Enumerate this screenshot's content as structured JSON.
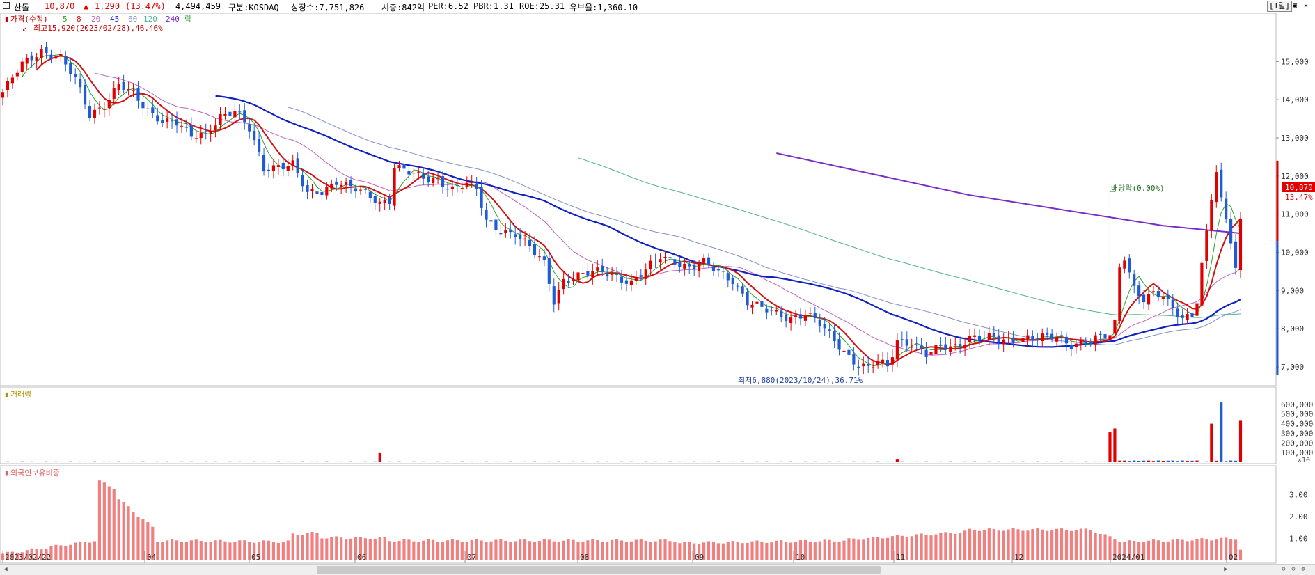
{
  "header": {
    "name": "산돌",
    "price": "10,870",
    "arrow": "▲",
    "change": "1,290",
    "change_pct": "(13.47%)",
    "volume": "4,494,459",
    "market": "구분:KOSDAQ",
    "shares": "상장수:7,751,826",
    "mktcap": "시총:842억",
    "per": "PER:6.52",
    "pbr": "PBR:1.31",
    "roe": "ROE:25.31",
    "float": "유보율:1,360.10",
    "period_btn": "[1일]"
  },
  "price_panel": {
    "legend_title": "가격(수정)",
    "ma_labels": [
      "5",
      "8",
      "20",
      "45",
      "60",
      "120",
      "240"
    ],
    "ex_label": "락",
    "high_note": "최고15,920(2023/02/28),46.46%",
    "low_note": "최저6,880(2023/10/24),36.71%",
    "dividend_note": "배당락(0.00%)",
    "last_price": "10,870",
    "last_pct": "13.47%"
  },
  "volume_panel": {
    "title": "거래량",
    "unit": "×10"
  },
  "foreign_panel": {
    "title": "외국인보유비중"
  },
  "colors": {
    "up": "#e00000",
    "down": "#1f5bd6",
    "ma5": "#2ca02c",
    "ma8": "#d01010",
    "ma20": "#c060c0",
    "ma45": "#1020c0",
    "ma60": "#8090c8",
    "ma120": "#50b090",
    "ma240": "#7a2cc8",
    "foreign_bar": "#f08080"
  },
  "chart_data": [
    {
      "type": "candlestick",
      "x_ticks": [
        "2023/02/22",
        "04",
        "05",
        "06",
        "07",
        "08",
        "09",
        "10",
        "11",
        "12",
        "2024/01",
        "02"
      ],
      "y_ticks": [
        "15,000",
        "14,000",
        "13,000",
        "12,000",
        "11,000",
        "10,000",
        "9,000",
        "8,000",
        "7,000"
      ],
      "ylim": [
        6600,
        15900
      ],
      "close_path": [
        [
          0,
          14200
        ],
        [
          4,
          14900
        ],
        [
          8,
          15300
        ],
        [
          12,
          15100
        ],
        [
          15,
          14500
        ],
        [
          18,
          13600
        ],
        [
          21,
          13900
        ],
        [
          24,
          14400
        ],
        [
          27,
          14100
        ],
        [
          30,
          13700
        ],
        [
          33,
          13500
        ],
        [
          36,
          13400
        ],
        [
          39,
          13000
        ],
        [
          42,
          13100
        ],
        [
          45,
          13600
        ],
        [
          48,
          13700
        ],
        [
          51,
          13200
        ],
        [
          54,
          12200
        ],
        [
          57,
          12300
        ],
        [
          60,
          12300
        ],
        [
          63,
          11500
        ],
        [
          66,
          11600
        ],
        [
          69,
          11900
        ],
        [
          72,
          11700
        ],
        [
          75,
          11500
        ],
        [
          78,
          11300
        ],
        [
          80,
          11400
        ],
        [
          81,
          12300
        ],
        [
          84,
          12100
        ],
        [
          87,
          11900
        ],
        [
          90,
          11900
        ],
        [
          93,
          11700
        ],
        [
          96,
          11800
        ],
        [
          98,
          11600
        ],
        [
          100,
          10800
        ],
        [
          103,
          10600
        ],
        [
          106,
          10500
        ],
        [
          109,
          10100
        ],
        [
          112,
          9700
        ],
        [
          114,
          8750
        ],
        [
          116,
          9300
        ],
        [
          120,
          9400
        ],
        [
          124,
          9500
        ],
        [
          127,
          9400
        ],
        [
          130,
          9200
        ],
        [
          133,
          9500
        ],
        [
          136,
          9900
        ],
        [
          139,
          9800
        ],
        [
          142,
          9600
        ],
        [
          145,
          9700
        ],
        [
          148,
          9500
        ],
        [
          151,
          9300
        ],
        [
          154,
          8700
        ],
        [
          157,
          8500
        ],
        [
          160,
          8400
        ],
        [
          163,
          8300
        ],
        [
          166,
          8400
        ],
        [
          169,
          8100
        ],
        [
          172,
          7700
        ],
        [
          175,
          7300
        ],
        [
          177,
          7050
        ],
        [
          179,
          6950
        ],
        [
          181,
          7100
        ],
        [
          183,
          7000
        ],
        [
          185,
          7700
        ],
        [
          188,
          7650
        ],
        [
          191,
          7300
        ],
        [
          194,
          7500
        ],
        [
          197,
          7550
        ],
        [
          200,
          7800
        ],
        [
          203,
          7750
        ],
        [
          206,
          7700
        ],
        [
          209,
          7700
        ],
        [
          212,
          7800
        ],
        [
          215,
          7750
        ],
        [
          218,
          7750
        ],
        [
          221,
          7600
        ],
        [
          224,
          7700
        ],
        [
          227,
          7750
        ],
        [
          229,
          7800
        ],
        [
          230,
          8100
        ],
        [
          231,
          9600
        ],
        [
          232,
          9900
        ],
        [
          234,
          9100
        ],
        [
          236,
          8800
        ],
        [
          238,
          8900
        ],
        [
          240,
          8800
        ],
        [
          242,
          8500
        ],
        [
          244,
          8300
        ],
        [
          246,
          8400
        ],
        [
          247,
          8800
        ],
        [
          248,
          9700
        ],
        [
          249,
          10500
        ],
        [
          250,
          11400
        ],
        [
          251,
          12100
        ],
        [
          252,
          11300
        ],
        [
          253,
          10800
        ],
        [
          254,
          10300
        ],
        [
          255,
          9600
        ],
        [
          256,
          10870
        ]
      ],
      "volume_spikes": [
        [
          78,
          95000
        ],
        [
          185,
          28000
        ],
        [
          229,
          310000
        ],
        [
          230,
          350000
        ],
        [
          250,
          400000
        ],
        [
          252,
          620000
        ],
        [
          256,
          430000
        ]
      ],
      "volume_ylim": [
        0,
        700000
      ],
      "volume_ticks": [
        "600,000",
        "500,000",
        "400,000",
        "300,000",
        "200,000",
        "100,000"
      ]
    },
    {
      "type": "bar",
      "name": "외국인보유비중",
      "ylim": [
        0,
        4.0
      ],
      "y_ticks": [
        "3.00",
        "2.00",
        "1.00"
      ],
      "segments": [
        [
          0,
          20,
          0.3,
          0.9
        ],
        [
          20,
          24,
          3.6,
          3.3
        ],
        [
          24,
          32,
          2.8,
          1.5
        ],
        [
          32,
          60,
          0.9,
          0.85
        ],
        [
          60,
          66,
          1.2,
          1.25
        ],
        [
          66,
          80,
          1.05,
          1.0
        ],
        [
          80,
          140,
          0.9,
          0.9
        ],
        [
          140,
          175,
          0.8,
          0.9
        ],
        [
          175,
          200,
          0.95,
          1.3
        ],
        [
          200,
          226,
          1.4,
          1.4
        ],
        [
          226,
          232,
          1.3,
          0.9
        ],
        [
          232,
          256,
          0.85,
          1.0
        ]
      ]
    }
  ]
}
